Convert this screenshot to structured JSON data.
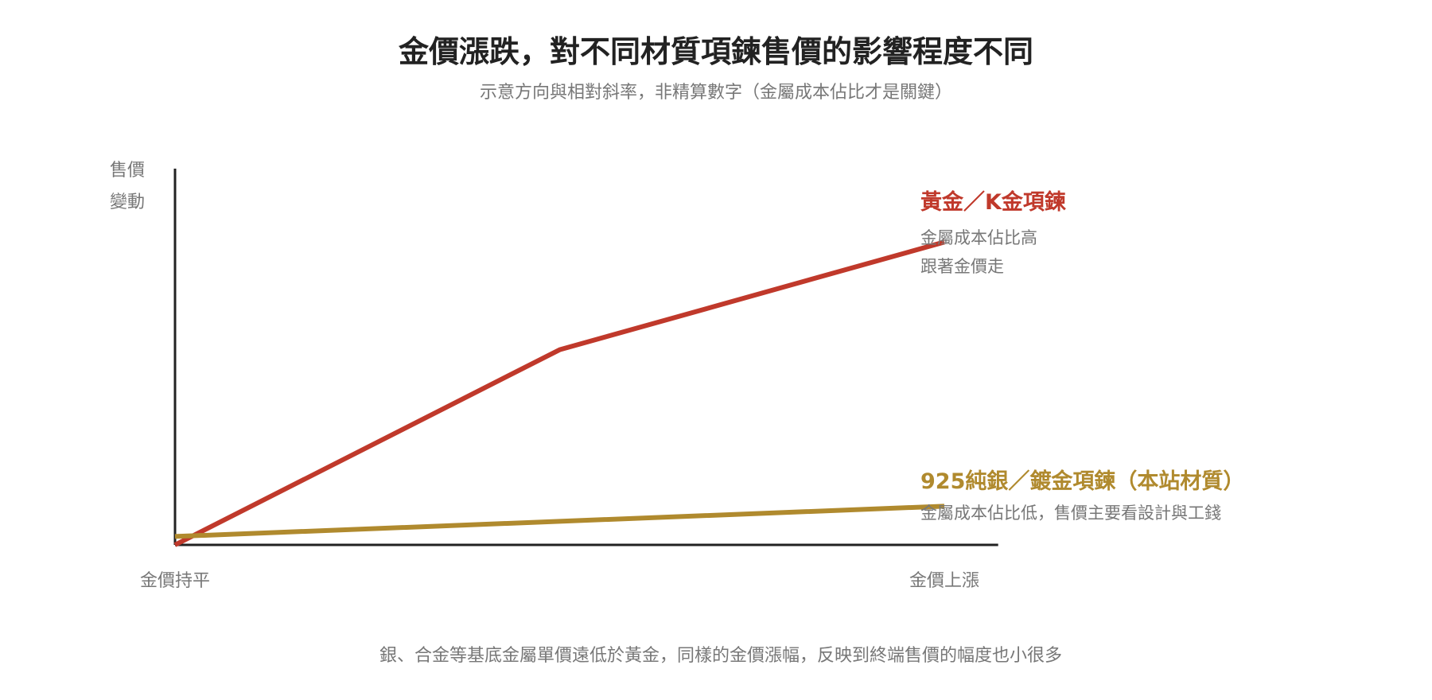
{
  "colors": {
    "gold": "#C0392B",
    "silver": "#B08A2E",
    "axis": "#222222",
    "text_muted": "#777777"
  },
  "chart_data": {
    "type": "line",
    "title": "金價漲跌，對不同材質項鍊售價的影響程度不同",
    "subtitle": "示意方向與相對斜率，非精算數字（金屬成本佔比才是關鍵）",
    "ylabel": [
      "售價",
      "變動"
    ],
    "x_tick_labels": [
      "金價持平",
      "金價上漲"
    ],
    "x": [
      0,
      0.5,
      1
    ],
    "xlim": [
      0,
      1.07
    ],
    "ylim": [
      0,
      1.0
    ],
    "series": [
      {
        "name": "黃金／K金項鍊",
        "color": "#C0392B",
        "values": [
          0,
          0.58,
          0.9
        ],
        "notes": [
          "金屬成本佔比高",
          "跟著金價走"
        ]
      },
      {
        "name": "925純銀／鍍金項鍊（本站材質）",
        "color": "#B08A2E",
        "values": [
          0.025,
          0.07,
          0.115
        ],
        "notes": [
          "金屬成本佔比低，售價主要看設計與工錢"
        ]
      }
    ],
    "footnote": "銀、合金等基底金屬單價遠低於黃金，同樣的金價漲幅，反映到終端售價的幅度也小很多",
    "grid": false,
    "legend": "right-inline"
  }
}
